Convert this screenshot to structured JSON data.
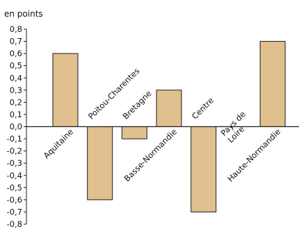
{
  "chart_data": {
    "type": "bar",
    "unit_label": "en points",
    "categories": [
      [
        "Aquitaine"
      ],
      [
        "Poitou-Charentes"
      ],
      [
        "Bretagne"
      ],
      [
        "Basse-Normandie"
      ],
      [
        "Centre"
      ],
      [
        "Pays de",
        "Loire"
      ],
      [
        "Haute-Normandie"
      ]
    ],
    "values": [
      0.6,
      -0.6,
      -0.1,
      0.3,
      -0.7,
      0.0,
      0.7
    ],
    "ylim": [
      -0.8,
      0.8
    ],
    "yticks": [
      "0,8",
      "0,7",
      "0,6",
      "0,5",
      "0,4",
      "0,3",
      "0,2",
      "0,1",
      "0,0",
      "-0,1",
      "-0,2",
      "-0,3",
      "-0,4",
      "-0,5",
      "-0,6",
      "-0,7",
      "-0,8"
    ],
    "colors": {
      "bar_fill": "#dfc08e",
      "bar_stroke": "#1a1a1a",
      "axis": "#1a1a1a"
    }
  }
}
